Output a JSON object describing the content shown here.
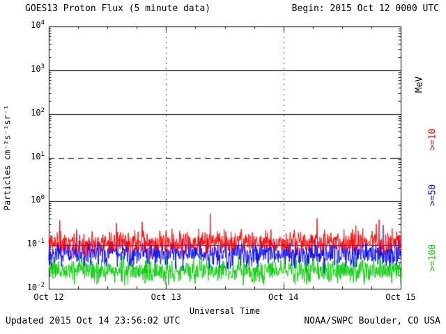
{
  "header": {
    "title": "GOES13 Proton Flux (5 minute data)",
    "begin": "Begin: 2015 Oct 12 0000 UTC"
  },
  "footer": {
    "updated": "Updated 2015 Oct 14 23:56:02 UTC",
    "source": "NOAA/SWPC Boulder, CO USA"
  },
  "axes": {
    "xlabel": "Universal Time",
    "ylabel": "Particles cm⁻²s⁻¹sr⁻¹",
    "right_axis_label": "MeV",
    "x_ticks": [
      "Oct 12",
      "Oct 13",
      "Oct 14",
      "Oct 15"
    ],
    "y_ticks": [
      {
        "base": "10",
        "exp": "4"
      },
      {
        "base": "10",
        "exp": "3"
      },
      {
        "base": "10",
        "exp": "2"
      },
      {
        "base": "10",
        "exp": "1"
      },
      {
        "base": "10",
        "exp": "0"
      },
      {
        "base": "10",
        "exp": "-1"
      },
      {
        "base": "10",
        "exp": "-2"
      }
    ]
  },
  "colors": {
    "frame": "#000000",
    "background": "#FFFFFF",
    "red": "#FF0000",
    "blue": "#0000FF",
    "green": "#00CC00"
  },
  "chart_data": {
    "type": "line",
    "title": "GOES13 Proton Flux (5 minute data)",
    "xlabel": "Universal Time",
    "ylabel": "Particles cm-2 s-1 sr-1",
    "x_range_days": [
      0,
      3
    ],
    "x_tick_labels": [
      "Oct 12",
      "Oct 13",
      "Oct 14",
      "Oct 15"
    ],
    "points_per_day": 288,
    "y_log": true,
    "ylim": [
      0.01,
      10000
    ],
    "gridlines": {
      "horizontal_solid_exponents": [
        3,
        2,
        0,
        -1
      ],
      "horizontal_dashed_exponents": [
        1
      ],
      "vertical_dotted_days": [
        1,
        2
      ]
    },
    "legend_position": "right-outside-rotated",
    "series": [
      {
        "name": "Protons >=10 MeV",
        "label": ">=10",
        "color": "#FF0000",
        "baseline_flux": 0.115,
        "noise_log10_sigma": 0.13,
        "spike_probability": 0.012,
        "spike_log10_max": 0.68,
        "approx_flux_range": [
          0.06,
          0.6
        ],
        "seed": 11
      },
      {
        "name": "Protons >=50 MeV",
        "label": ">=50",
        "color": "#0000FF",
        "baseline_flux": 0.065,
        "noise_log10_sigma": 0.14,
        "spike_probability": 0.01,
        "spike_log10_max": 0.55,
        "approx_flux_range": [
          0.035,
          0.25
        ],
        "seed": 22
      },
      {
        "name": "Protons >=100 MeV",
        "label": ">=100",
        "color": "#00CC00",
        "baseline_flux": 0.026,
        "noise_log10_sigma": 0.13,
        "spike_probability": 0.01,
        "spike_log10_max": 0.45,
        "approx_flux_range": [
          0.012,
          0.08
        ],
        "seed": 33
      }
    ]
  }
}
